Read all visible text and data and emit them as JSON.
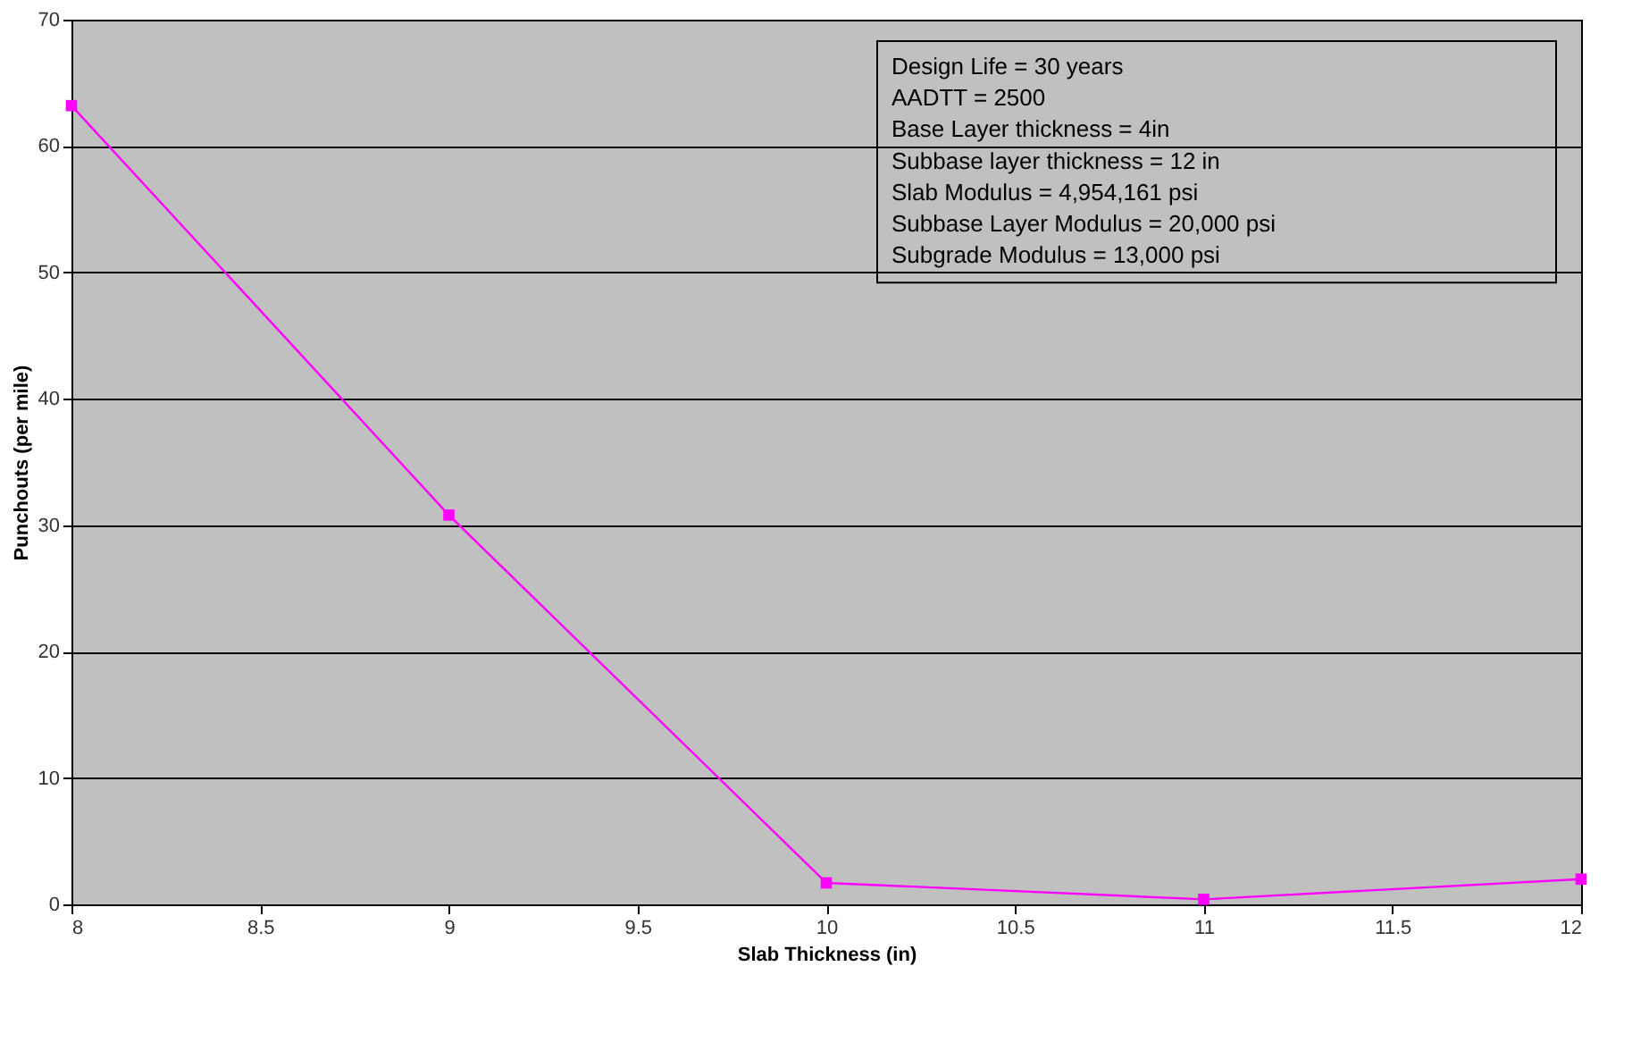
{
  "chart_data": {
    "type": "line",
    "xlabel": "Slab Thickness (in)",
    "ylabel": "Punchouts (per mile)",
    "x": [
      8,
      9,
      10,
      11,
      12
    ],
    "series": [
      {
        "color": "#ff00ff",
        "values": [
          63.2,
          30.8,
          1.7,
          0.4,
          2.0
        ]
      }
    ],
    "xlim": [
      8,
      12
    ],
    "xticks": [
      8,
      8.5,
      9,
      9.5,
      10,
      10.5,
      11,
      11.5,
      12
    ],
    "ylim": [
      0,
      70
    ],
    "yticks": [
      0,
      10,
      20,
      30,
      40,
      50,
      60,
      70
    ],
    "grid": "y",
    "marker": "square",
    "line_style": "solid",
    "annotations": [
      "Design Life = 30 years",
      "AADTT = 2500",
      "Base Layer thickness = 4in",
      "Subbase layer thickness = 12 in",
      "Slab Modulus = 4,954,161 psi",
      "Subbase Layer Modulus = 20,000 psi",
      "Subgrade Modulus = 13,000 psi"
    ]
  }
}
